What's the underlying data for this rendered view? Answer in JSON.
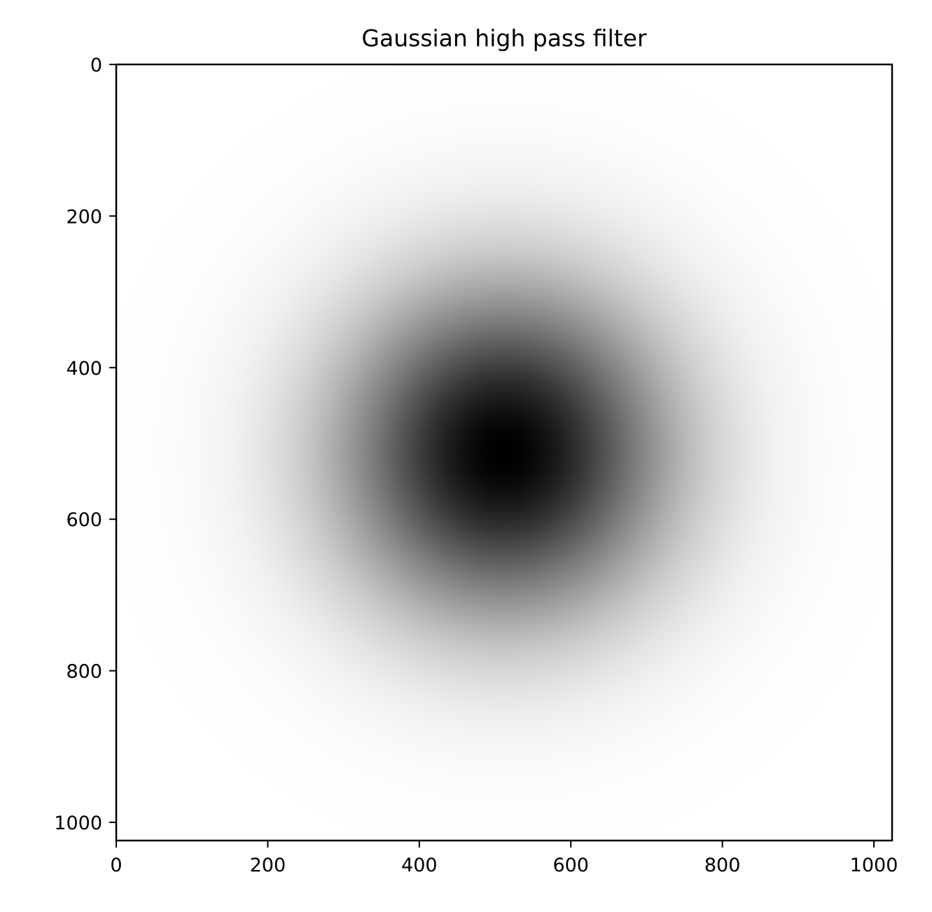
{
  "chart_data": {
    "type": "heatmap",
    "title": "Gaussian high pass filter",
    "xlabel": "",
    "ylabel": "",
    "image_size": [
      1024,
      1024
    ],
    "xlim": [
      0,
      1024
    ],
    "ylim": [
      1024,
      0
    ],
    "x_ticks": [
      0,
      200,
      400,
      600,
      800,
      1000
    ],
    "y_ticks": [
      0,
      200,
      400,
      600,
      800,
      1000
    ],
    "colormap": "gray",
    "filter": {
      "center": [
        512,
        512
      ],
      "sigma": 150
    },
    "grid": false
  }
}
